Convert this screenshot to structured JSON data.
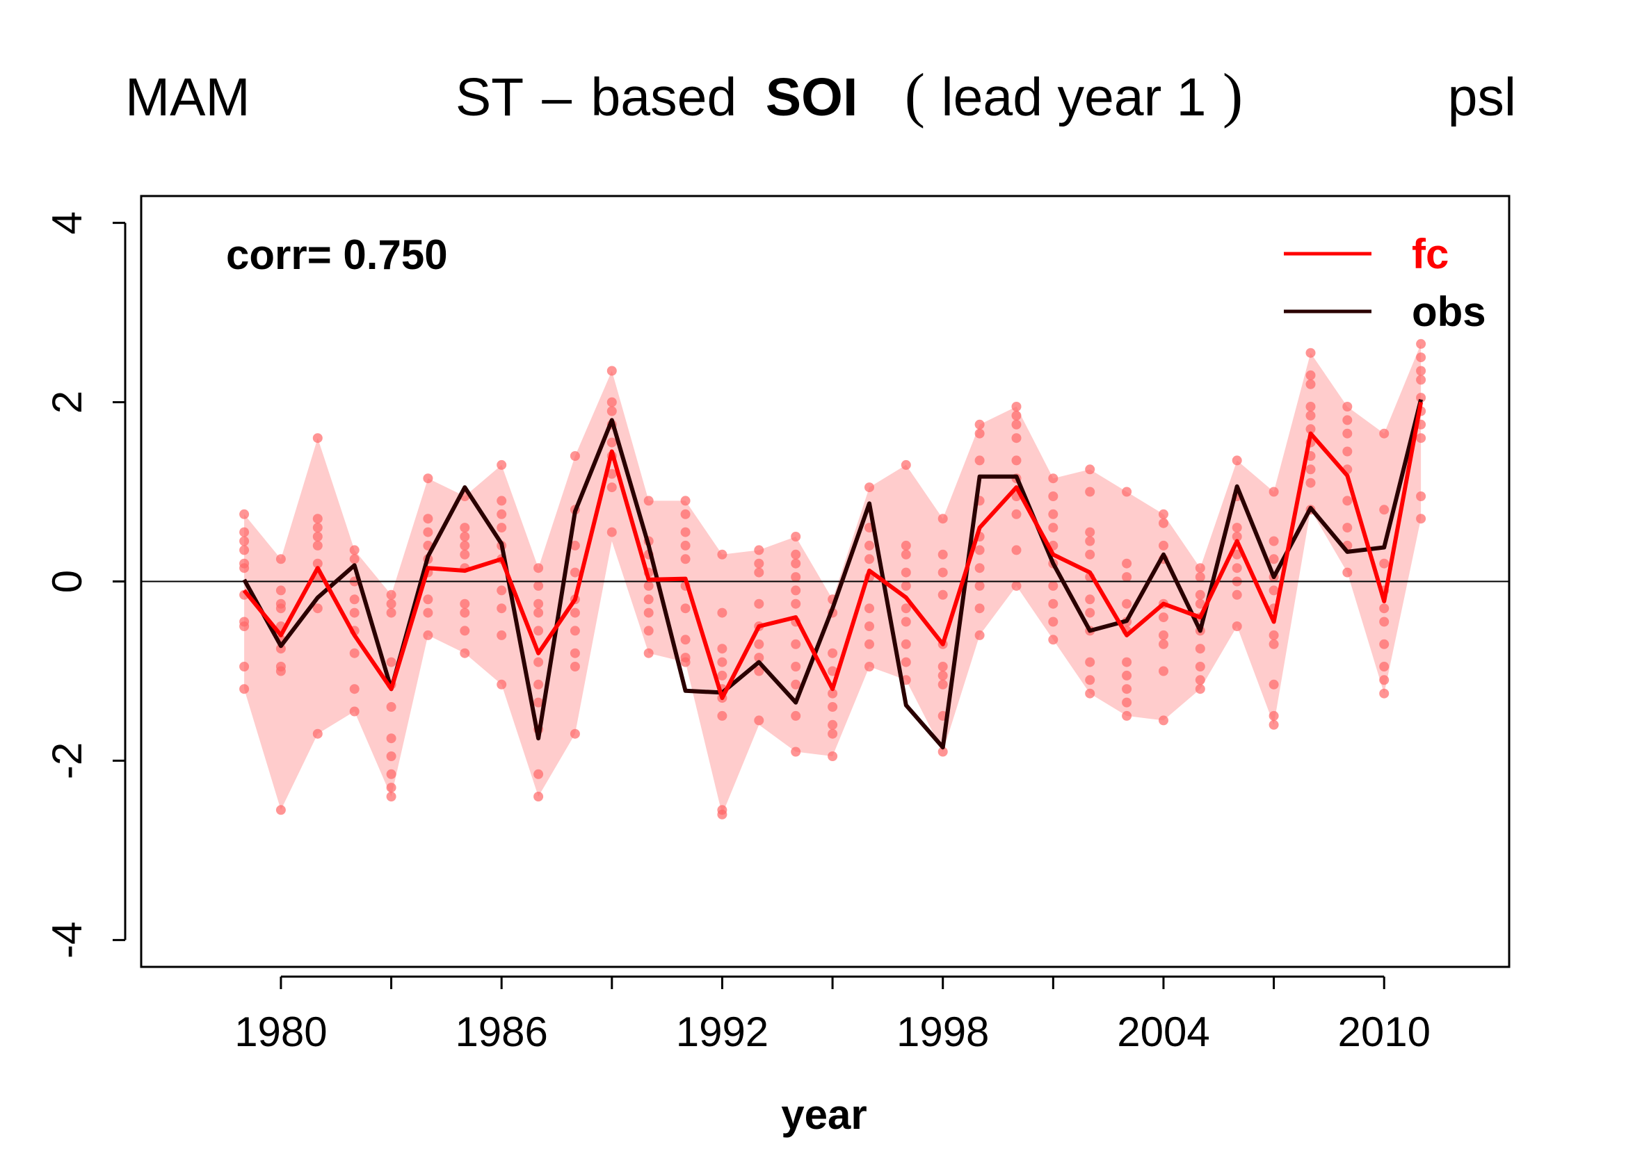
{
  "header": {
    "season": "MAM",
    "title_prefix": "ST",
    "title_dash": "–",
    "title_based": "based",
    "title_bold": "SOI",
    "title_paren_open": "(",
    "title_lead": "lead year 1",
    "title_paren_close": ")",
    "variable": "psl"
  },
  "annotation": {
    "corr_text": "corr= 0.750"
  },
  "colors": {
    "fc": "#ff0000",
    "obs": "#2a0000",
    "band": "#ffcccc",
    "members": "#ff6666"
  },
  "chart_data": {
    "type": "line",
    "title": "ST – based SOI (lead year 1)",
    "xlabel": "year",
    "ylabel": "",
    "xlim": [
      1976.2,
      2013.4
    ],
    "ylim": [
      -4.3,
      4.3
    ],
    "x_ticks": [
      1980,
      1983,
      1986,
      1989,
      1992,
      1995,
      1998,
      2001,
      2004,
      2007,
      2010
    ],
    "x_tick_labels": [
      "1980",
      "1986",
      "1992",
      "1998",
      "2004",
      "2010"
    ],
    "x_tick_label_years": [
      1980,
      1986,
      1992,
      1998,
      2004,
      2010
    ],
    "y_ticks": [
      -4,
      -2,
      0,
      2,
      4
    ],
    "y_tick_labels": [
      "-4",
      "-2",
      "0",
      "2",
      "4"
    ],
    "reference_line_y": 0,
    "grid": false,
    "legend_position": "top-right",
    "legend": [
      {
        "label": "fc",
        "color": "#ff0000"
      },
      {
        "label": "obs",
        "color": "#2a0000"
      }
    ],
    "x": [
      1979,
      1980,
      1981,
      1982,
      1983,
      1984,
      1985,
      1986,
      1987,
      1988,
      1989,
      1990,
      1991,
      1992,
      1993,
      1994,
      1995,
      1996,
      1997,
      1998,
      1999,
      2000,
      2001,
      2002,
      2003,
      2004,
      2005,
      2006,
      2007,
      2008,
      2009,
      2010,
      2011
    ],
    "series": [
      {
        "name": "fc",
        "values": [
          -0.1,
          -0.6,
          0.15,
          -0.6,
          -1.2,
          0.15,
          0.12,
          0.25,
          -0.8,
          -0.2,
          1.45,
          0.02,
          0.03,
          -1.3,
          -0.5,
          -0.4,
          -1.2,
          0.12,
          -0.18,
          -0.7,
          0.6,
          1.05,
          0.3,
          0.1,
          -0.6,
          -0.25,
          -0.4,
          0.45,
          -0.45,
          1.65,
          1.18,
          -0.22,
          2.0
        ]
      },
      {
        "name": "obs",
        "values": [
          0.02,
          -0.72,
          -0.18,
          0.18,
          -1.2,
          0.28,
          1.05,
          0.42,
          -1.75,
          0.78,
          1.8,
          0.4,
          -1.22,
          -1.24,
          -0.9,
          -1.35,
          -0.3,
          0.87,
          -1.38,
          -1.85,
          1.17,
          1.17,
          0.2,
          -0.55,
          -0.44,
          0.3,
          -0.55,
          1.06,
          0.05,
          0.82,
          0.33,
          0.38,
          2.03
        ]
      }
    ],
    "band_upper": [
      0.75,
      0.25,
      1.6,
      0.35,
      -0.15,
      1.15,
      0.95,
      1.3,
      0.15,
      1.4,
      2.35,
      0.9,
      0.9,
      0.3,
      0.35,
      0.5,
      -0.2,
      1.05,
      1.3,
      0.7,
      1.75,
      1.95,
      1.15,
      1.25,
      1.0,
      0.75,
      0.15,
      1.35,
      1.0,
      2.55,
      1.95,
      1.65,
      2.65
    ],
    "band_lower": [
      -1.2,
      -2.55,
      -1.7,
      -1.45,
      -2.4,
      -0.6,
      -0.8,
      -1.15,
      -2.4,
      -1.7,
      0.45,
      -0.8,
      -0.9,
      -2.6,
      -1.6,
      -1.9,
      -1.95,
      -0.95,
      -1.1,
      -1.9,
      -0.6,
      -0.05,
      -0.65,
      -1.25,
      -1.5,
      -1.55,
      -1.2,
      -0.5,
      -1.6,
      0.8,
      0.1,
      -1.25,
      0.7
    ],
    "ensemble_members": [
      [
        0.75,
        0.55,
        0.45,
        0.35,
        0.2,
        0.15,
        -0.15,
        -0.45,
        -0.5,
        -0.95,
        -1.2
      ],
      [
        0.25,
        -0.1,
        -0.25,
        -0.3,
        -0.5,
        -0.65,
        -0.75,
        -0.95,
        -1.0,
        -2.55
      ],
      [
        1.6,
        0.7,
        0.6,
        0.5,
        0.4,
        0.2,
        0.05,
        -0.3,
        -1.7
      ],
      [
        0.35,
        0.25,
        0.0,
        -0.2,
        -0.35,
        -0.55,
        -0.8,
        -1.2,
        -1.45
      ],
      [
        -0.15,
        -0.25,
        -0.35,
        -0.9,
        -1.15,
        -1.4,
        -1.75,
        -1.95,
        -2.15,
        -2.3,
        -2.4
      ],
      [
        1.15,
        0.7,
        0.55,
        0.4,
        0.25,
        0.1,
        -0.2,
        -0.35,
        -0.6
      ],
      [
        0.95,
        0.6,
        0.5,
        0.4,
        0.3,
        0.15,
        -0.25,
        -0.35,
        -0.55,
        -0.8
      ],
      [
        1.3,
        0.9,
        0.75,
        0.6,
        0.4,
        0.25,
        -0.1,
        -0.3,
        -0.6,
        -1.15
      ],
      [
        0.15,
        -0.05,
        -0.25,
        -0.35,
        -0.55,
        -0.9,
        -1.15,
        -1.35,
        -1.65,
        -2.15,
        -2.4
      ],
      [
        1.4,
        0.8,
        0.4,
        0.1,
        -0.2,
        -0.35,
        -0.55,
        -0.8,
        -0.95,
        -1.7
      ],
      [
        2.35,
        2.0,
        1.9,
        1.75,
        1.55,
        1.4,
        1.2,
        1.05,
        0.55
      ],
      [
        0.9,
        0.45,
        0.3,
        0.1,
        -0.05,
        -0.2,
        -0.35,
        -0.55,
        -0.8
      ],
      [
        0.9,
        0.75,
        0.55,
        0.4,
        0.25,
        -0.05,
        -0.3,
        -0.65,
        -0.85,
        -0.9
      ],
      [
        0.3,
        -0.35,
        -0.75,
        -0.9,
        -1.05,
        -1.2,
        -1.3,
        -1.5,
        -2.55,
        -2.6
      ],
      [
        0.35,
        0.2,
        0.1,
        -0.25,
        -0.5,
        -0.7,
        -0.85,
        -1.0,
        -1.55
      ],
      [
        0.5,
        0.3,
        0.2,
        0.05,
        -0.1,
        -0.25,
        -0.45,
        -0.7,
        -0.95,
        -1.15,
        -1.5,
        -1.9
      ],
      [
        -0.2,
        -0.35,
        -0.8,
        -1.0,
        -1.25,
        -1.4,
        -1.6,
        -1.7,
        -1.95
      ],
      [
        1.05,
        0.6,
        0.4,
        0.25,
        0.05,
        -0.3,
        -0.5,
        -0.7,
        -0.95
      ],
      [
        1.3,
        0.4,
        0.3,
        0.1,
        -0.05,
        -0.3,
        -0.45,
        -0.7,
        -0.9,
        -1.1
      ],
      [
        0.7,
        0.3,
        0.1,
        -0.15,
        -0.7,
        -0.95,
        -1.05,
        -1.15,
        -1.5,
        -1.9
      ],
      [
        1.75,
        1.65,
        1.35,
        0.9,
        0.5,
        0.35,
        0.15,
        -0.05,
        -0.3,
        -0.6
      ],
      [
        1.95,
        1.85,
        1.75,
        1.6,
        1.35,
        1.15,
        0.95,
        0.75,
        0.35,
        -0.05
      ],
      [
        1.15,
        0.95,
        0.75,
        0.6,
        0.4,
        0.2,
        -0.05,
        -0.25,
        -0.45,
        -0.65
      ],
      [
        1.25,
        1.0,
        0.55,
        0.45,
        0.3,
        0.05,
        -0.2,
        -0.35,
        -0.55,
        -0.9,
        -1.1,
        -1.25
      ],
      [
        1.0,
        0.2,
        0.05,
        -0.25,
        -0.45,
        -0.55,
        -0.9,
        -1.05,
        -1.2,
        -1.35,
        -1.5
      ],
      [
        0.75,
        0.65,
        0.4,
        0.25,
        -0.25,
        -0.4,
        -0.6,
        -0.7,
        -1.0,
        -1.55
      ],
      [
        0.15,
        0.05,
        -0.15,
        -0.25,
        -0.4,
        -0.55,
        -0.75,
        -0.95,
        -1.1,
        -1.2
      ],
      [
        1.35,
        0.95,
        0.6,
        0.5,
        0.3,
        0.15,
        0.0,
        -0.15,
        -0.5
      ],
      [
        1.0,
        0.45,
        0.25,
        0.05,
        -0.1,
        -0.3,
        -0.6,
        -0.7,
        -1.15,
        -1.5,
        -1.6
      ],
      [
        2.55,
        2.3,
        2.2,
        1.95,
        1.85,
        1.7,
        1.55,
        1.4,
        1.25,
        1.1,
        0.8
      ],
      [
        1.95,
        1.8,
        1.65,
        1.45,
        1.25,
        0.9,
        0.6,
        0.4,
        0.1
      ],
      [
        1.65,
        0.8,
        0.2,
        -0.1,
        -0.3,
        -0.45,
        -0.7,
        -0.95,
        -1.1,
        -1.25
      ],
      [
        2.65,
        2.5,
        2.35,
        2.25,
        2.05,
        1.9,
        1.75,
        1.6,
        0.95,
        0.7
      ]
    ]
  }
}
